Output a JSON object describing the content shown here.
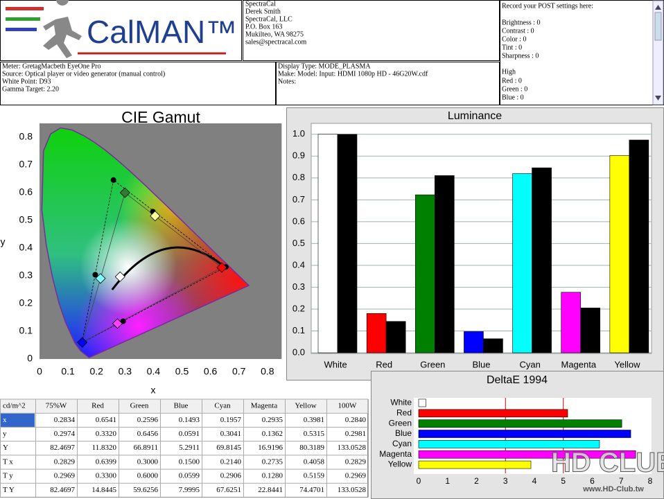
{
  "header": {
    "logo": "CalMAN™",
    "contact": [
      "SpectraCal",
      "Derek Smith",
      "SpectraCal, LLC",
      "P.O. Box 163",
      "Mukilteo, WA 98275",
      "sales@spectracal.com"
    ],
    "post_settings": {
      "title": "Record your POST settings here:",
      "lines": [
        "Brightness : 0",
        "Contrast : 0",
        "Color : 0",
        "Tint : 0",
        "Sharpness : 0"
      ],
      "high_title": "High",
      "high_lines": [
        "Red : 0",
        "Green : 0",
        "Blue : 0"
      ]
    },
    "meter": [
      "Meter: GretagMacbeth EyeOne Pro",
      "Source: Optical player or video generator (manual control)",
      "White Point: D93",
      "Gamma Target: 2.20"
    ],
    "display": [
      "Display Type: MODE_PLASMA",
      "Make: Model: Input: HDMI 1080p HD    -    46G20W.cdf",
      "Notes:"
    ]
  },
  "chart_data": [
    {
      "type": "scatter",
      "title": "CIE Gamut",
      "x_label": "x",
      "y_label": "y",
      "xlim": [
        0,
        0.85
      ],
      "ylim": [
        0,
        0.85
      ],
      "xticks": [
        0,
        0.1,
        0.2,
        0.3,
        0.4,
        0.5,
        0.6,
        0.7,
        0.8
      ],
      "yticks": [
        0,
        0.1,
        0.2,
        0.3,
        0.4,
        0.5,
        0.6,
        0.7,
        0.8
      ],
      "series": [
        {
          "marker": "circle",
          "color": "#000000",
          "x": [
            0.2834,
            0.6541,
            0.2596,
            0.1493,
            0.1957,
            0.2935,
            0.3981
          ],
          "values": [
            0.2974,
            0.332,
            0.6456,
            0.0591,
            0.3041,
            0.1362,
            0.5315
          ]
        },
        {
          "marker": "diamond",
          "colors": [
            "#ffffff",
            "#ff0000",
            "#2e7d32",
            "#0000ff",
            "#7fffff",
            "#ff40ff",
            "#ffff99"
          ],
          "x": [
            0.2829,
            0.6399,
            0.3,
            0.15,
            0.214,
            0.2735,
            0.4058
          ],
          "values": [
            0.2969,
            0.33,
            0.6,
            0.0599,
            0.2906,
            0.128,
            0.5159
          ]
        }
      ]
    },
    {
      "type": "bar",
      "title": "Luminance",
      "categories": [
        "White",
        "Red",
        "Green",
        "Blue",
        "Cyan",
        "Magenta",
        "Yellow"
      ],
      "colors": [
        "#ffffff",
        "#ff0000",
        "#008000",
        "#0000ff",
        "#00ffff",
        "#ff00ff",
        "#ffff00"
      ],
      "series": [
        {
          "values": [
            1.0,
            0.18,
            0.723,
            0.097,
            0.82,
            0.277,
            0.903
          ]
        },
        {
          "color": "#000000",
          "values": [
            1.0,
            0.1435,
            0.811,
            0.0642,
            0.8466,
            0.2052,
            0.9739
          ]
        }
      ],
      "ylim": [
        0,
        1.05
      ],
      "yticks": [
        {
          "value": 0,
          "label": "0.0"
        },
        0.1,
        0.2,
        0.3,
        0.4,
        0.5,
        0.6,
        0.7,
        0.8,
        0.9,
        {
          "value": 1,
          "label": "1.0"
        }
      ],
      "grid": true
    },
    {
      "type": "hbar",
      "title": "DeltaE 1994",
      "categories": [
        "White",
        "Red",
        "Green",
        "Blue",
        "Cyan",
        "Magenta",
        "Yellow"
      ],
      "colors": [
        "#ffffff",
        "#ff0000",
        "#008000",
        "#0000ff",
        "#00ffff",
        "#ff00ff",
        "#ffff00"
      ],
      "values": [
        0.25,
        5.15,
        7.02,
        7.33,
        6.25,
        7.5,
        3.88
      ],
      "xlim": [
        0,
        8
      ],
      "xticks": [
        0,
        1,
        2,
        3,
        4,
        5,
        6,
        7,
        8
      ],
      "thresholds": [
        3,
        5
      ],
      "threshold_color": "#cc0000"
    }
  ],
  "table": {
    "header": [
      "cd/m^2",
      "75%W",
      "Red",
      "Green",
      "Blue",
      "Cyan",
      "Magenta",
      "Yellow",
      "100W"
    ],
    "rows": [
      [
        "x",
        "0.2834",
        "0.6541",
        "0.2596",
        "0.1493",
        "0.1957",
        "0.2935",
        "0.3981",
        "0.2840"
      ],
      [
        "y",
        "0.2974",
        "0.3320",
        "0.6456",
        "0.0591",
        "0.3041",
        "0.1362",
        "0.5315",
        "0.2981"
      ],
      [
        "Y",
        "82.4697",
        "11.8320",
        "66.8911",
        "5.2911",
        "69.8145",
        "16.9196",
        "80.3189",
        "133.0528"
      ],
      [
        "T x",
        "0.2829",
        "0.6399",
        "0.3000",
        "0.1500",
        "0.2140",
        "0.2735",
        "0.4058",
        "0.2829"
      ],
      [
        "T y",
        "0.2969",
        "0.3300",
        "0.6000",
        "0.0599",
        "0.2906",
        "0.1280",
        "0.5159",
        "0.2969"
      ],
      [
        "T Y",
        "82.4697",
        "14.8445",
        "59.6256",
        "7.9995",
        "67.6251",
        "22.8441",
        "74.4701",
        "133.0528"
      ]
    ]
  },
  "watermark": {
    "logo": "HD CLUB",
    "url": "www.HD-Club.tw"
  }
}
